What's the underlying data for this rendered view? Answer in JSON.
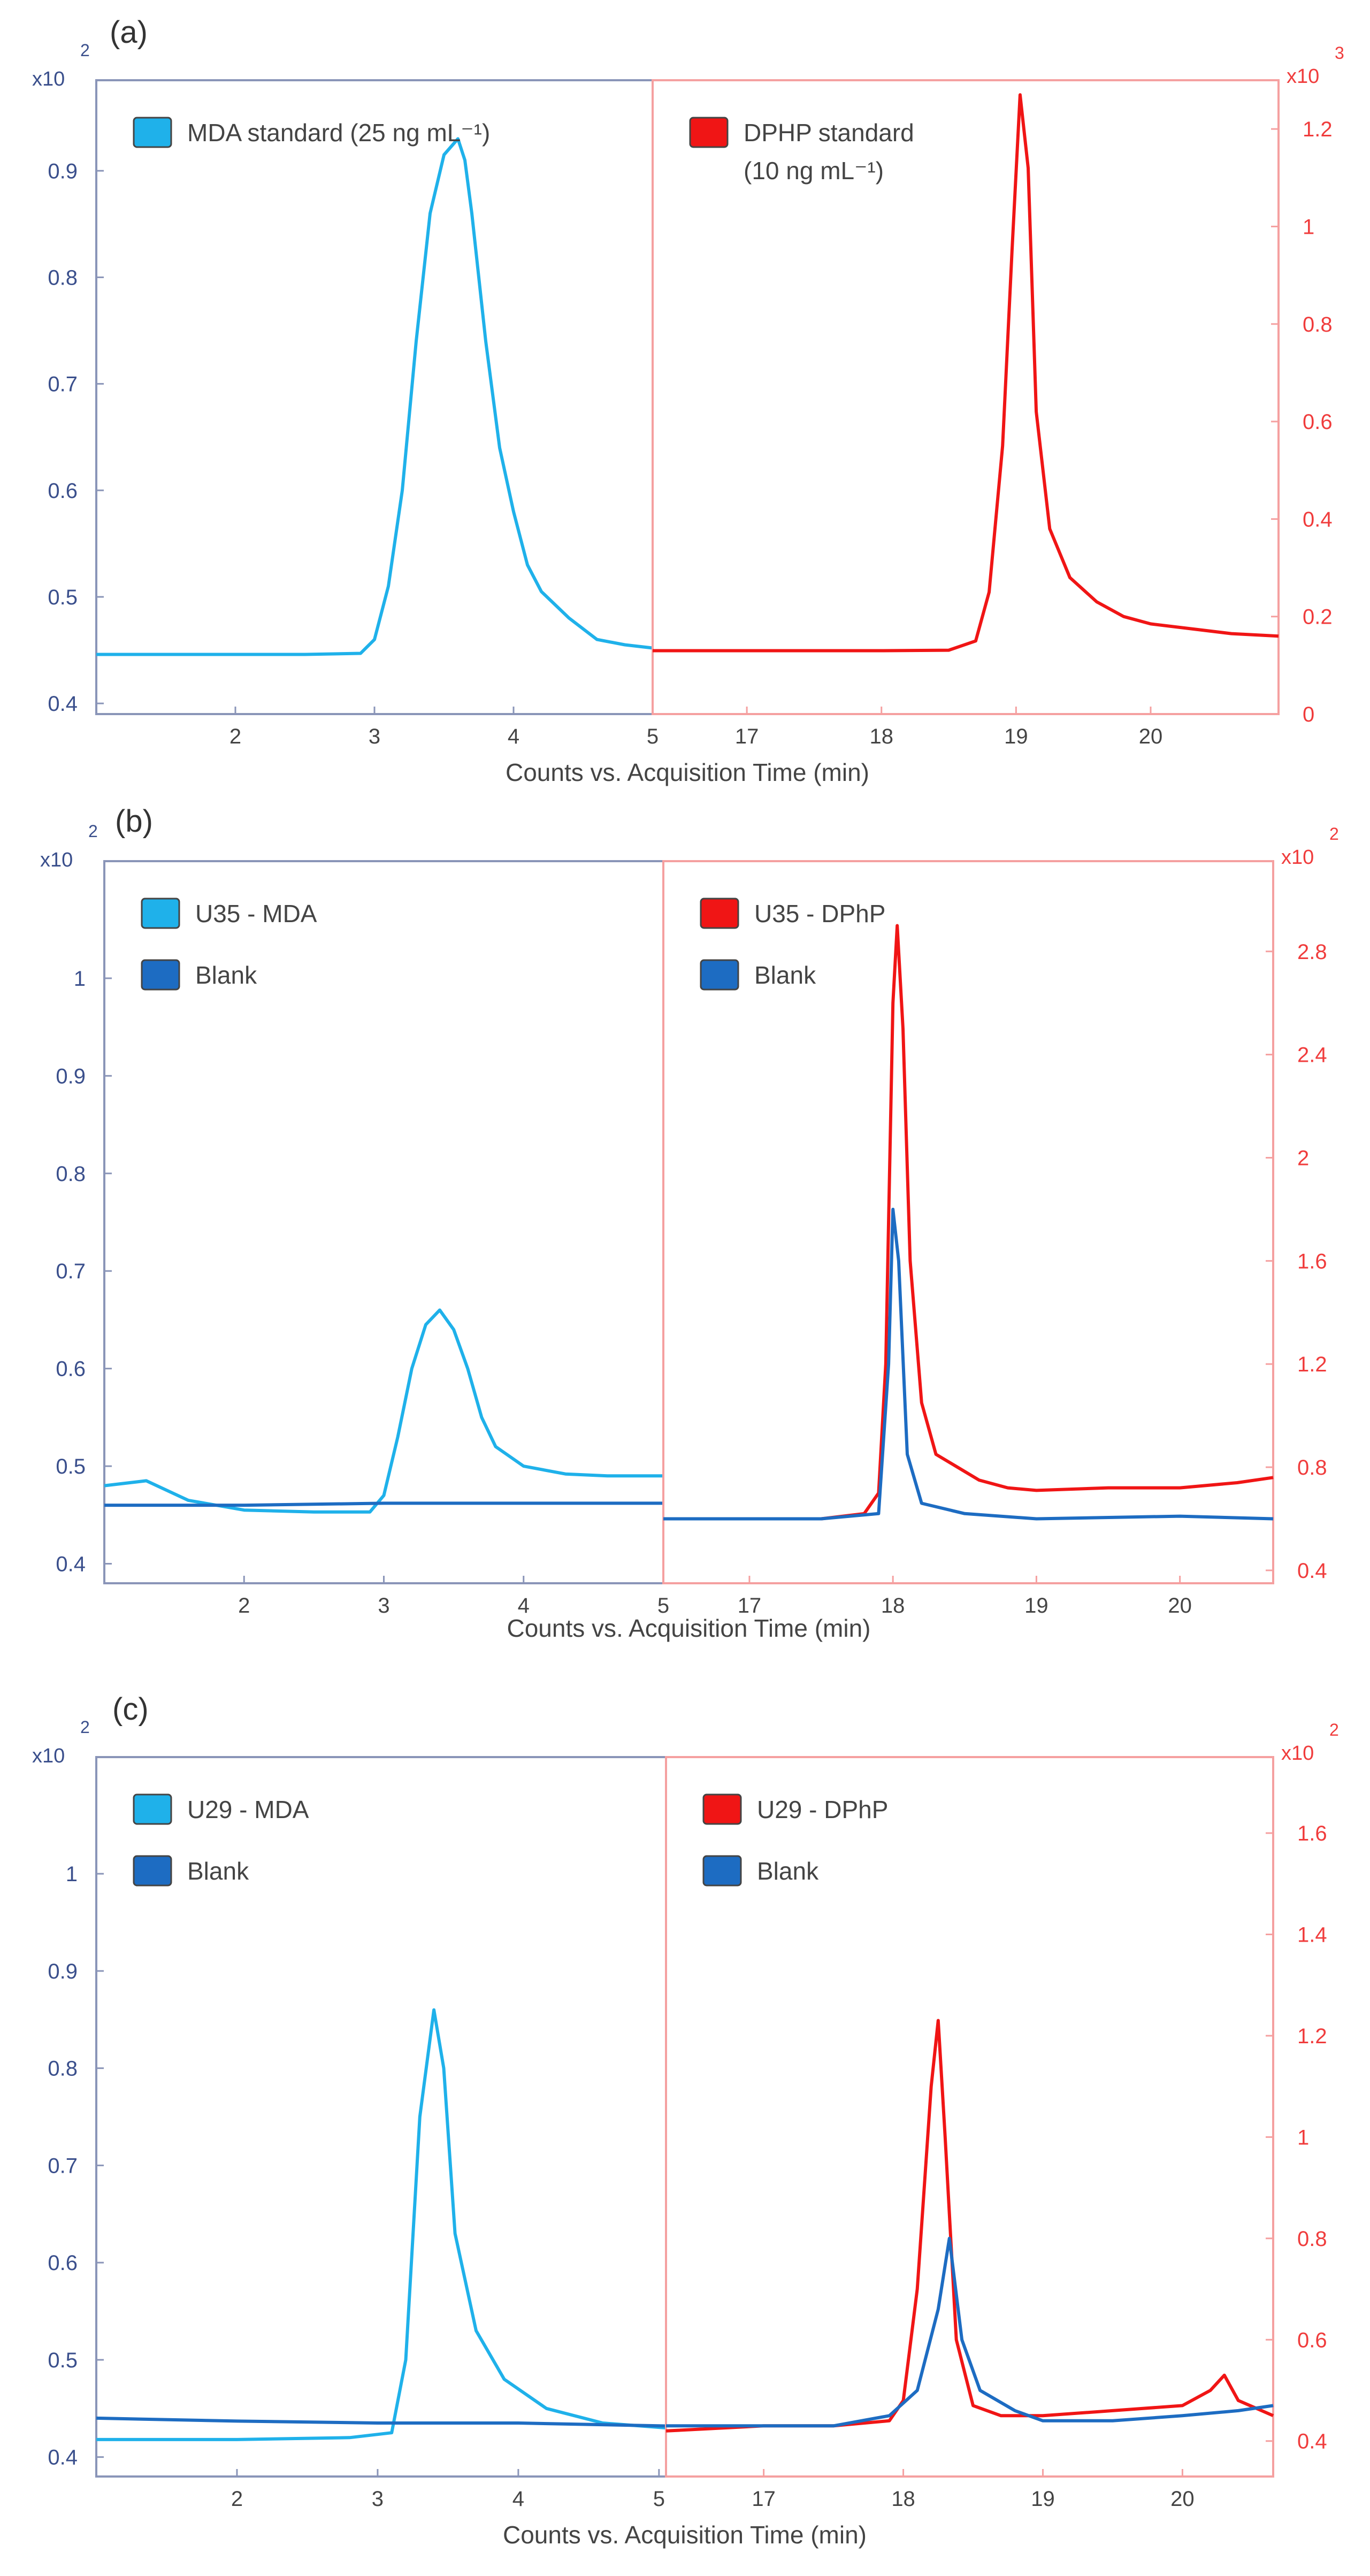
{
  "colors": {
    "left_axis": "#3a4f8c",
    "right_axis": "#f03c3c",
    "left_frame": "#8a95b8",
    "right_frame": "#f5a0a0",
    "mda": "#1fb1ea",
    "blank": "#1d6cc2",
    "dphp": "#f01515",
    "text": "#333333"
  },
  "chart_data": [
    {
      "id": "a",
      "panel_label": "(a)",
      "type": "line",
      "xlabel": "Counts vs. Acquisition Time (min)",
      "left": {
        "xlim": [
          1,
          5
        ],
        "xticks": [
          2,
          3,
          4,
          5
        ],
        "xtick_labels": [
          "2",
          "3",
          "4",
          "5"
        ],
        "ylim": [
          0.39,
          0.985
        ],
        "yticks": [
          0.4,
          0.5,
          0.6,
          0.7,
          0.8,
          0.9
        ],
        "ytick_labels": [
          "0.4",
          "0.5",
          "0.6",
          "0.7",
          "0.8",
          "0.9"
        ],
        "multiplier": "x10",
        "exponent": "2",
        "legend": [
          {
            "label": "MDA standard (25 ng mL⁻¹)",
            "color_key": "mda"
          }
        ],
        "series": [
          {
            "name": "MDA standard",
            "color_key": "mda",
            "points": [
              [
                1,
                0.446
              ],
              [
                1.5,
                0.446
              ],
              [
                2,
                0.446
              ],
              [
                2.5,
                0.446
              ],
              [
                2.9,
                0.447
              ],
              [
                3.0,
                0.46
              ],
              [
                3.1,
                0.51
              ],
              [
                3.2,
                0.6
              ],
              [
                3.3,
                0.74
              ],
              [
                3.4,
                0.86
              ],
              [
                3.5,
                0.915
              ],
              [
                3.6,
                0.93
              ],
              [
                3.65,
                0.91
              ],
              [
                3.7,
                0.86
              ],
              [
                3.8,
                0.74
              ],
              [
                3.9,
                0.64
              ],
              [
                4.0,
                0.58
              ],
              [
                4.1,
                0.53
              ],
              [
                4.2,
                0.505
              ],
              [
                4.4,
                0.48
              ],
              [
                4.6,
                0.46
              ],
              [
                4.8,
                0.455
              ],
              [
                5,
                0.452
              ]
            ]
          }
        ]
      },
      "right": {
        "xlim": [
          16.3,
          20.95
        ],
        "xticks": [
          17,
          18,
          19,
          20
        ],
        "xtick_labels": [
          "17",
          "18",
          "19",
          "20"
        ],
        "ylim": [
          0,
          1.3
        ],
        "yticks": [
          0,
          0.2,
          0.4,
          0.6,
          0.8,
          1,
          1.2
        ],
        "ytick_labels": [
          "0",
          "0.2",
          "0.4",
          "0.6",
          "0.8",
          "1",
          "1.2"
        ],
        "multiplier": "x10",
        "exponent": "3",
        "legend": [
          {
            "label": "DPHP standard",
            "label2": "(10 ng mL⁻¹)",
            "color_key": "dphp"
          }
        ],
        "series": [
          {
            "name": "DPHP standard",
            "color_key": "dphp",
            "points": [
              [
                16.3,
                0.13
              ],
              [
                17,
                0.13
              ],
              [
                18,
                0.13
              ],
              [
                18.5,
                0.131
              ],
              [
                18.7,
                0.15
              ],
              [
                18.8,
                0.25
              ],
              [
                18.9,
                0.55
              ],
              [
                18.97,
                0.95
              ],
              [
                19.03,
                1.27
              ],
              [
                19.09,
                1.12
              ],
              [
                19.15,
                0.62
              ],
              [
                19.25,
                0.38
              ],
              [
                19.4,
                0.28
              ],
              [
                19.6,
                0.23
              ],
              [
                19.8,
                0.2
              ],
              [
                20,
                0.185
              ],
              [
                20.3,
                0.175
              ],
              [
                20.6,
                0.165
              ],
              [
                20.95,
                0.16
              ]
            ]
          }
        ]
      }
    },
    {
      "id": "b",
      "panel_label": "(b)",
      "type": "line",
      "xlabel": "Counts vs. Acquisition Time (min)",
      "left": {
        "xlim": [
          1,
          5
        ],
        "xticks": [
          2,
          3,
          4,
          5
        ],
        "xtick_labels": [
          "2",
          "3",
          "4",
          "5"
        ],
        "ylim": [
          0.38,
          1.12
        ],
        "yticks": [
          0.4,
          0.5,
          0.6,
          0.7,
          0.8,
          0.9,
          1
        ],
        "ytick_labels": [
          "0.4",
          "0.5",
          "0.6",
          "0.7",
          "0.8",
          "0.9",
          "1"
        ],
        "multiplier": "x10",
        "exponent": "2",
        "legend": [
          {
            "label": "U35 - MDA",
            "color_key": "mda"
          },
          {
            "label": "Blank",
            "color_key": "blank"
          }
        ],
        "series": [
          {
            "name": "U35 - MDA",
            "color_key": "mda",
            "points": [
              [
                1,
                0.48
              ],
              [
                1.3,
                0.485
              ],
              [
                1.6,
                0.465
              ],
              [
                2,
                0.455
              ],
              [
                2.5,
                0.453
              ],
              [
                2.9,
                0.453
              ],
              [
                3.0,
                0.47
              ],
              [
                3.1,
                0.53
              ],
              [
                3.2,
                0.6
              ],
              [
                3.3,
                0.645
              ],
              [
                3.4,
                0.66
              ],
              [
                3.5,
                0.64
              ],
              [
                3.6,
                0.6
              ],
              [
                3.7,
                0.55
              ],
              [
                3.8,
                0.52
              ],
              [
                4.0,
                0.5
              ],
              [
                4.3,
                0.492
              ],
              [
                4.6,
                0.49
              ],
              [
                5,
                0.49
              ]
            ]
          },
          {
            "name": "Blank",
            "color_key": "blank",
            "points": [
              [
                1,
                0.46
              ],
              [
                2,
                0.46
              ],
              [
                3,
                0.462
              ],
              [
                4,
                0.462
              ],
              [
                5,
                0.462
              ]
            ]
          }
        ]
      },
      "right": {
        "xlim": [
          16.4,
          20.65
        ],
        "xticks": [
          17,
          18,
          19,
          20
        ],
        "xtick_labels": [
          "17",
          "18",
          "19",
          "20"
        ],
        "ylim": [
          0.35,
          3.15
        ],
        "yticks": [
          0.4,
          0.8,
          1.2,
          1.6,
          2,
          2.4,
          2.8
        ],
        "ytick_labels": [
          "0.4",
          "0.8",
          "1.2",
          "1.6",
          "2",
          "2.4",
          "2.8"
        ],
        "multiplier": "x10",
        "exponent": "2",
        "legend": [
          {
            "label": "U35 - DPhP",
            "color_key": "dphp"
          },
          {
            "label": "Blank",
            "color_key": "blank"
          }
        ],
        "series": [
          {
            "name": "U35 - DPhP",
            "color_key": "dphp",
            "points": [
              [
                16.4,
                0.6
              ],
              [
                17,
                0.6
              ],
              [
                17.5,
                0.6
              ],
              [
                17.8,
                0.62
              ],
              [
                17.9,
                0.7
              ],
              [
                17.95,
                1.2
              ],
              [
                18.0,
                2.6
              ],
              [
                18.03,
                2.9
              ],
              [
                18.07,
                2.5
              ],
              [
                18.12,
                1.6
              ],
              [
                18.2,
                1.05
              ],
              [
                18.3,
                0.85
              ],
              [
                18.45,
                0.8
              ],
              [
                18.6,
                0.75
              ],
              [
                18.8,
                0.72
              ],
              [
                19.0,
                0.71
              ],
              [
                19.5,
                0.72
              ],
              [
                20.0,
                0.72
              ],
              [
                20.4,
                0.74
              ],
              [
                20.65,
                0.76
              ]
            ]
          },
          {
            "name": "Blank",
            "color_key": "blank",
            "points": [
              [
                16.4,
                0.6
              ],
              [
                17.5,
                0.6
              ],
              [
                17.9,
                0.62
              ],
              [
                17.97,
                1.2
              ],
              [
                18.0,
                1.8
              ],
              [
                18.04,
                1.6
              ],
              [
                18.1,
                0.85
              ],
              [
                18.2,
                0.66
              ],
              [
                18.5,
                0.62
              ],
              [
                19,
                0.6
              ],
              [
                20,
                0.61
              ],
              [
                20.65,
                0.6
              ]
            ]
          }
        ]
      }
    },
    {
      "id": "c",
      "panel_label": "(c)",
      "type": "line",
      "xlabel": "Counts vs. Acquisition Time (min)",
      "left": {
        "xlim": [
          1,
          5.05
        ],
        "xticks": [
          2,
          3,
          4,
          5
        ],
        "xtick_labels": [
          "2",
          "3",
          "4",
          "5"
        ],
        "ylim": [
          0.38,
          1.12
        ],
        "yticks": [
          0.4,
          0.5,
          0.6,
          0.7,
          0.8,
          0.9,
          1
        ],
        "ytick_labels": [
          "0.4",
          "0.5",
          "0.6",
          "0.7",
          "0.8",
          "0.9",
          "1"
        ],
        "multiplier": "x10",
        "exponent": "2",
        "legend": [
          {
            "label": "U29 - MDA",
            "color_key": "mda"
          },
          {
            "label": "Blank",
            "color_key": "blank"
          }
        ],
        "series": [
          {
            "name": "U29 - MDA",
            "color_key": "mda",
            "points": [
              [
                1,
                0.418
              ],
              [
                2,
                0.418
              ],
              [
                2.8,
                0.42
              ],
              [
                3.1,
                0.425
              ],
              [
                3.2,
                0.5
              ],
              [
                3.3,
                0.75
              ],
              [
                3.4,
                0.86
              ],
              [
                3.47,
                0.8
              ],
              [
                3.55,
                0.63
              ],
              [
                3.7,
                0.53
              ],
              [
                3.9,
                0.48
              ],
              [
                4.2,
                0.45
              ],
              [
                4.6,
                0.435
              ],
              [
                5.05,
                0.43
              ]
            ]
          },
          {
            "name": "Blank",
            "color_key": "blank",
            "points": [
              [
                1,
                0.44
              ],
              [
                2,
                0.437
              ],
              [
                3,
                0.435
              ],
              [
                4,
                0.435
              ],
              [
                5.05,
                0.432
              ]
            ]
          }
        ]
      },
      "right": {
        "xlim": [
          16.3,
          20.65
        ],
        "xticks": [
          17,
          18,
          19,
          20
        ],
        "xtick_labels": [
          "17",
          "18",
          "19",
          "20"
        ],
        "ylim": [
          0.33,
          1.75
        ],
        "yticks": [
          0.4,
          0.6,
          0.8,
          1,
          1.2,
          1.4,
          1.6
        ],
        "ytick_labels": [
          "0.4",
          "0.6",
          "0.8",
          "1",
          "1.2",
          "1.4",
          "1.6"
        ],
        "multiplier": "x10",
        "exponent": "2",
        "legend": [
          {
            "label": "U29 - DPhP",
            "color_key": "dphp"
          },
          {
            "label": "Blank",
            "color_key": "blank"
          }
        ],
        "series": [
          {
            "name": "U29 - DPhP",
            "color_key": "dphp",
            "points": [
              [
                16.3,
                0.42
              ],
              [
                17,
                0.43
              ],
              [
                17.5,
                0.43
              ],
              [
                17.9,
                0.44
              ],
              [
                18.0,
                0.48
              ],
              [
                18.1,
                0.7
              ],
              [
                18.2,
                1.1
              ],
              [
                18.25,
                1.23
              ],
              [
                18.3,
                1.0
              ],
              [
                18.38,
                0.6
              ],
              [
                18.5,
                0.47
              ],
              [
                18.7,
                0.45
              ],
              [
                19,
                0.45
              ],
              [
                19.5,
                0.46
              ],
              [
                20.0,
                0.47
              ],
              [
                20.2,
                0.5
              ],
              [
                20.3,
                0.53
              ],
              [
                20.4,
                0.48
              ],
              [
                20.65,
                0.45
              ]
            ]
          },
          {
            "name": "Blank",
            "color_key": "blank",
            "points": [
              [
                16.3,
                0.43
              ],
              [
                17,
                0.43
              ],
              [
                17.5,
                0.43
              ],
              [
                17.9,
                0.45
              ],
              [
                18.1,
                0.5
              ],
              [
                18.25,
                0.66
              ],
              [
                18.33,
                0.8
              ],
              [
                18.42,
                0.6
              ],
              [
                18.55,
                0.5
              ],
              [
                18.8,
                0.46
              ],
              [
                19,
                0.44
              ],
              [
                19.5,
                0.44
              ],
              [
                20,
                0.45
              ],
              [
                20.4,
                0.46
              ],
              [
                20.65,
                0.47
              ]
            ]
          }
        ]
      }
    }
  ]
}
